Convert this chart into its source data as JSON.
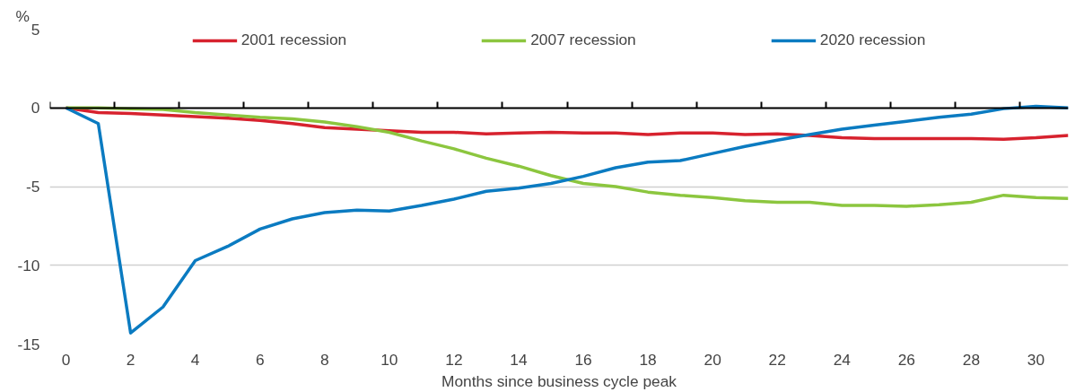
{
  "chart_data": {
    "type": "line",
    "xlabel": "Months since business cycle peak",
    "ylabel": "%",
    "x": [
      0,
      1,
      2,
      3,
      4,
      5,
      6,
      7,
      8,
      9,
      10,
      11,
      12,
      13,
      14,
      15,
      16,
      17,
      18,
      19,
      20,
      21,
      22,
      23,
      24,
      25,
      26,
      27,
      28,
      29,
      30,
      31
    ],
    "xlim": [
      -0.5,
      31
    ],
    "xticks": [
      0,
      2,
      4,
      6,
      8,
      10,
      12,
      14,
      16,
      18,
      20,
      22,
      24,
      26,
      28,
      30
    ],
    "ylim": [
      -15,
      5
    ],
    "yticks": [
      -15,
      -10,
      -5,
      0,
      5
    ],
    "grid": "y",
    "legend": "top",
    "line_style": "solid",
    "marker": "none",
    "series": [
      {
        "name": "2001 recession",
        "color": "#d7222e",
        "values": [
          0,
          -0.3,
          -0.35,
          -0.45,
          -0.55,
          -0.65,
          -0.8,
          -1.0,
          -1.25,
          -1.35,
          -1.45,
          -1.55,
          -1.55,
          -1.65,
          -1.6,
          -1.55,
          -1.6,
          -1.6,
          -1.7,
          -1.6,
          -1.6,
          -1.7,
          -1.65,
          -1.75,
          -1.9,
          -1.95,
          -1.95,
          -1.95,
          -1.95,
          -2.0,
          -1.9,
          -1.75
        ]
      },
      {
        "name": "2007 recession",
        "color": "#8cc63f",
        "values": [
          0,
          0,
          -0.05,
          -0.1,
          -0.3,
          -0.45,
          -0.6,
          -0.7,
          -0.9,
          -1.2,
          -1.55,
          -2.1,
          -2.6,
          -3.2,
          -3.7,
          -4.3,
          -4.8,
          -5.0,
          -5.35,
          -5.55,
          -5.7,
          -5.9,
          -6.0,
          -6.0,
          -6.2,
          -6.2,
          -6.25,
          -6.15,
          -6.0,
          -5.55,
          -5.7,
          -5.75
        ]
      },
      {
        "name": "2020 recession",
        "color": "#0b7bc1",
        "values": [
          0,
          -1.0,
          -14.3,
          -12.65,
          -9.7,
          -8.8,
          -7.7,
          -7.05,
          -6.65,
          -6.5,
          -6.55,
          -6.2,
          -5.8,
          -5.3,
          -5.1,
          -4.8,
          -4.35,
          -3.8,
          -3.45,
          -3.35,
          -2.9,
          -2.45,
          -2.05,
          -1.7,
          -1.35,
          -1.1,
          -0.85,
          -0.6,
          -0.4,
          -0.05,
          0.1,
          0
        ]
      }
    ]
  }
}
